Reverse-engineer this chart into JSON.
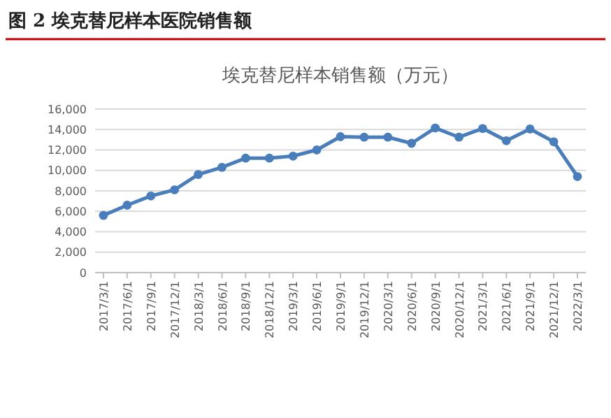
{
  "chart_data": {
    "type": "line",
    "title": "埃克替尼样本销售额（万元）",
    "subtitle": "图 2   埃克替尼样本医院销售额",
    "categories": [
      "2017/3/1",
      "2017/6/1",
      "2017/9/1",
      "2017/12/1",
      "2018/3/1",
      "2018/6/1",
      "2018/9/1",
      "2018/12/1",
      "2019/3/1",
      "2019/6/1",
      "2019/9/1",
      "2019/12/1",
      "2020/3/1",
      "2020/6/1",
      "2020/9/1",
      "2020/12/1",
      "2021/3/1",
      "2021/6/1",
      "2021/9/1",
      "2021/12/1",
      "2022/3/1"
    ],
    "series": [
      {
        "color": "#4a7ebb",
        "values": [
          5600,
          6600,
          7500,
          8100,
          9600,
          10300,
          11200,
          11200,
          11400,
          12000,
          13300,
          13250,
          13250,
          12650,
          14150,
          13250,
          14100,
          12900,
          14050,
          12800,
          9400
        ]
      }
    ],
    "ylim": [
      0,
      16000
    ],
    "yticks": [
      {
        "value": 0,
        "label": "0"
      },
      {
        "value": 2000,
        "label": "2,000"
      },
      {
        "value": 4000,
        "label": "4,000"
      },
      {
        "value": 6000,
        "label": "6,000"
      },
      {
        "value": 8000,
        "label": "8,000"
      },
      {
        "value": 10000,
        "label": "10,000"
      },
      {
        "value": 12000,
        "label": "12,000"
      },
      {
        "value": 14000,
        "label": "14,000"
      },
      {
        "value": 16000,
        "label": "16,000"
      }
    ],
    "grid": "y",
    "marker": "circle",
    "line_style": "solid"
  }
}
